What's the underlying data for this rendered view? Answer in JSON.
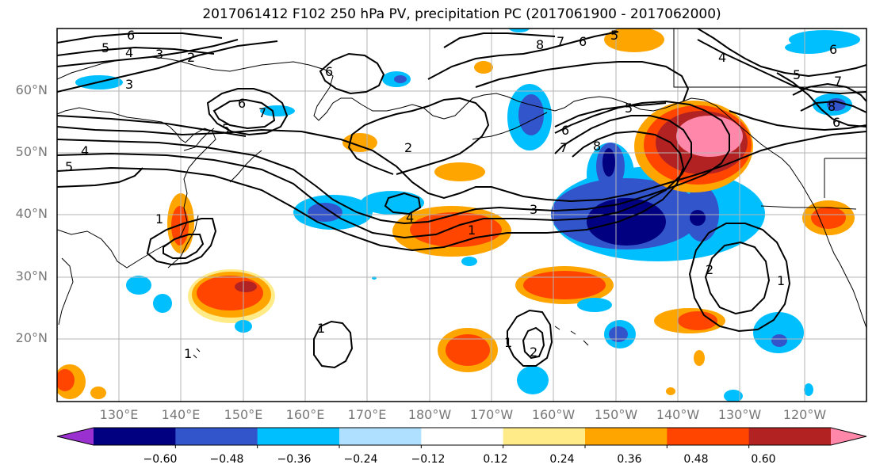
{
  "title": "2017061412 F102 250 hPa PV, precipitation PC (2017061900 - 2017062000)",
  "lat_ticks": [
    "60°N",
    "50°N",
    "40°N",
    "30°N",
    "20°N"
  ],
  "lon_ticks": [
    "130°E",
    "140°E",
    "150°E",
    "160°E",
    "170°E",
    "180°W",
    "170°W",
    "160°W",
    "150°W",
    "140°W",
    "130°W",
    "120°W"
  ],
  "colorbar": {
    "labels": [
      "−0.60",
      "−0.48",
      "−0.36",
      "−0.24",
      "−0.12",
      "0.12",
      "0.24",
      "0.36",
      "0.48",
      "0.60"
    ],
    "colors": [
      "#9b30d0",
      "#000080",
      "#3355cc",
      "#00bfff",
      "#b0e0ff",
      "#ffffff",
      "#ffeb88",
      "#ffa500",
      "#ff4500",
      "#b22222",
      "#ff88aa"
    ]
  },
  "contour_labels": [
    "5",
    "6",
    "4",
    "3",
    "2",
    "6",
    "5",
    "7",
    "6",
    "3",
    "4",
    "5",
    "2",
    "1",
    "1",
    "1",
    "1",
    "2",
    "4",
    "5",
    "6",
    "7",
    "8",
    "3",
    "1",
    "6",
    "5",
    "7",
    "8",
    "4",
    "5",
    "6",
    "7",
    "8",
    "6",
    "2",
    "1"
  ]
}
